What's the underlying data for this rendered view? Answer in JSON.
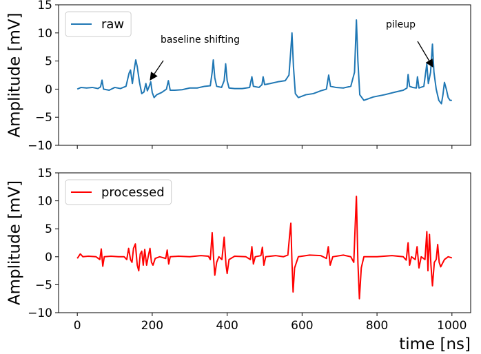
{
  "chart_data": [
    {
      "type": "line",
      "ylabel": "Amplitude [mV]",
      "legend": "upper left",
      "grid": false,
      "xlim": [
        -50,
        1050
      ],
      "xticks": [
        0,
        200,
        400,
        600,
        800,
        1000
      ],
      "show_xtick_labels": false,
      "ylim": [
        -10,
        15
      ],
      "yticks": [
        {
          "value": -10,
          "label": "−10"
        },
        {
          "value": -5,
          "label": "−5"
        },
        0,
        5,
        10,
        15
      ],
      "x": [
        0,
        10,
        25,
        40,
        55,
        62,
        66,
        70,
        85,
        100,
        115,
        130,
        138,
        142,
        147,
        152,
        156,
        160,
        166,
        172,
        178,
        183,
        187,
        192,
        196,
        200,
        205,
        212,
        225,
        238,
        243,
        248,
        260,
        280,
        300,
        320,
        340,
        355,
        360,
        363,
        367,
        372,
        385,
        392,
        396,
        400,
        405,
        420,
        440,
        460,
        466,
        470,
        485,
        493,
        496,
        500,
        515,
        535,
        555,
        565,
        570,
        573,
        577,
        582,
        590,
        610,
        630,
        650,
        665,
        671,
        676,
        690,
        710,
        730,
        740,
        745,
        749,
        754,
        765,
        790,
        820,
        850,
        870,
        880,
        883,
        887,
        895,
        905,
        908,
        912,
        925,
        933,
        937,
        943,
        948,
        952,
        958,
        965,
        972,
        976,
        980,
        985,
        990,
        995,
        1000
      ],
      "series": [
        {
          "name": "raw",
          "color": "#1f77b4",
          "values": [
            0,
            0.3,
            0.2,
            0.3,
            0.1,
            0.4,
            1.6,
            0,
            -0.2,
            0.3,
            0.1,
            0.5,
            2.8,
            3.4,
            1.0,
            3.5,
            5.2,
            4,
            1.2,
            -0.8,
            -0.5,
            1.0,
            -0.3,
            0.5,
            1.3,
            -0.6,
            -1.5,
            -1,
            -0.6,
            0,
            1.5,
            -0.2,
            -0.2,
            -0.1,
            0.2,
            0.2,
            0.5,
            0.6,
            3,
            5.2,
            2,
            0.5,
            0.3,
            1.5,
            4.5,
            1.5,
            0.2,
            0.1,
            0.1,
            0.3,
            2.2,
            0.5,
            0.3,
            0.8,
            2.2,
            0.8,
            1,
            1.3,
            1.5,
            2.5,
            7,
            10,
            4,
            -0.8,
            -1.5,
            -1,
            -0.8,
            -0.3,
            0,
            2.5,
            0.5,
            0.3,
            0.2,
            0.5,
            3,
            12.3,
            5,
            -1,
            -2,
            -1.4,
            -1,
            -0.5,
            -0.2,
            0.2,
            2.6,
            0.5,
            0.3,
            0.2,
            2.2,
            0.2,
            0.5,
            4.5,
            1,
            3,
            8,
            3,
            0,
            -2,
            -2.6,
            -1,
            1.2,
            0,
            -1.5,
            -2,
            -2
          ]
        }
      ],
      "annotations": [
        "baseline shifting",
        "pileup"
      ]
    },
    {
      "type": "line",
      "ylabel": "Amplitude [mV]",
      "xlabel": "time [ns]",
      "legend": "upper left",
      "grid": false,
      "xlim": [
        -50,
        1050
      ],
      "xticks": [
        0,
        200,
        400,
        600,
        800,
        1000
      ],
      "show_xtick_labels": true,
      "ylim": [
        -10,
        15
      ],
      "yticks": [
        {
          "value": -10,
          "label": "−10"
        },
        {
          "value": -5,
          "label": "−5"
        },
        0,
        5,
        10,
        15
      ],
      "x": [
        0,
        8,
        15,
        30,
        50,
        60,
        64,
        68,
        72,
        90,
        110,
        125,
        132,
        137,
        142,
        146,
        150,
        155,
        160,
        164,
        168,
        172,
        176,
        180,
        185,
        190,
        194,
        198,
        202,
        208,
        220,
        236,
        240,
        244,
        248,
        270,
        300,
        330,
        350,
        355,
        360,
        364,
        367,
        372,
        378,
        386,
        392,
        397,
        400,
        405,
        420,
        450,
        462,
        466,
        470,
        475,
        490,
        494,
        498,
        503,
        530,
        550,
        562,
        567,
        570,
        573,
        576,
        580,
        590,
        620,
        650,
        665,
        670,
        675,
        682,
        710,
        730,
        738,
        742,
        745,
        749,
        753,
        758,
        765,
        800,
        840,
        870,
        878,
        883,
        887,
        892,
        902,
        907,
        912,
        918,
        928,
        933,
        936,
        940,
        944,
        948,
        953,
        958,
        962,
        966,
        970,
        980,
        990,
        1000
      ],
      "series": [
        {
          "name": "processed",
          "color": "#ff0000",
          "values": [
            -0.3,
            0.5,
            0,
            0.1,
            0,
            -0.5,
            1.4,
            -1.7,
            0,
            0.1,
            0,
            0,
            -0.5,
            1.5,
            -0.5,
            -1,
            1.5,
            2.3,
            -1.5,
            -2.5,
            0.5,
            1,
            -1.5,
            1.3,
            -1.5,
            0.3,
            1.5,
            -1,
            -1.5,
            -0.3,
            0,
            -0.3,
            1.2,
            -1.3,
            0,
            0.1,
            0,
            0.2,
            0.1,
            -0.5,
            4.3,
            -0.5,
            -3.3,
            -1,
            0,
            -0.5,
            3.5,
            -1.5,
            -3,
            -0.5,
            0.1,
            0,
            -0.5,
            1.8,
            -1.3,
            0,
            0.2,
            1.7,
            -1.5,
            0,
            0.2,
            0,
            0.3,
            4,
            6,
            -1,
            -6.3,
            -2,
            0,
            0.3,
            0.2,
            -0.3,
            1.8,
            -1.5,
            0,
            0.3,
            0,
            -1,
            6,
            10.8,
            -1,
            -7.5,
            -2,
            0,
            0,
            0.2,
            0,
            -0.6,
            2.5,
            -1.5,
            0,
            -0.5,
            1.8,
            -2,
            0,
            -0.5,
            4.5,
            -2.5,
            4,
            -1.5,
            -5.2,
            -1,
            -0.5,
            2.2,
            -1,
            -1.8,
            -0.5,
            0,
            -0.2
          ]
        }
      ]
    }
  ]
}
